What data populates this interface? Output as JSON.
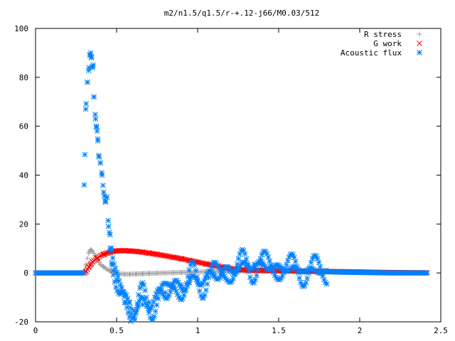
{
  "chart_data": {
    "type": "scatter",
    "title": "m2/n1.5/q1.5/r-+.12-j66/M0.03/512",
    "xlabel": "",
    "ylabel": "",
    "xlim": [
      0,
      2.5
    ],
    "ylim": [
      -20,
      100
    ],
    "xticks": [
      "0",
      "0.5",
      "1",
      "1.5",
      "2",
      "2.5"
    ],
    "yticks": [
      "-20",
      "0",
      "20",
      "40",
      "60",
      "80",
      "100"
    ],
    "grid": false,
    "legend_position": "top-right",
    "series": [
      {
        "name": "R stress",
        "marker": "plus",
        "color": "#a0a0a0",
        "x": [
          0.3,
          0.31,
          0.32,
          0.33,
          0.34,
          0.35,
          0.36,
          0.37,
          0.38,
          0.39,
          0.4,
          0.42,
          0.44,
          0.46,
          0.48,
          0.5,
          0.52,
          0.55,
          0.58,
          0.62,
          0.66,
          0.7,
          0.75,
          0.8,
          0.85,
          0.9,
          0.95,
          1.0,
          1.05,
          1.1,
          1.15,
          1.2,
          1.25,
          1.3,
          1.4,
          1.5,
          1.6,
          1.7,
          1.8,
          1.9,
          2.0
        ],
        "y": [
          0.5,
          3,
          6,
          8.5,
          9.5,
          9,
          8,
          7,
          5.5,
          4.5,
          3.5,
          2.5,
          1.5,
          0.8,
          0.3,
          0,
          -0.3,
          -0.5,
          -0.5,
          -0.4,
          -0.3,
          -0.2,
          -0.1,
          0,
          0.1,
          0.2,
          0.3,
          0.4,
          0.5,
          0.5,
          0.6,
          0.6,
          0.7,
          0.8,
          0.8,
          0.7,
          0.6,
          0.5,
          0.4,
          0.3,
          0.2
        ]
      },
      {
        "name": "G work",
        "marker": "cross",
        "color": "#ff0000",
        "x": [
          0.31,
          0.32,
          0.33,
          0.34,
          0.35,
          0.36,
          0.38,
          0.4,
          0.42,
          0.44,
          0.46,
          0.48,
          0.5,
          0.52,
          0.55,
          0.58,
          0.62,
          0.66,
          0.7,
          0.75,
          0.8,
          0.85,
          0.9,
          0.95,
          1.0,
          1.05,
          1.1,
          1.15,
          1.2,
          1.25,
          1.3,
          1.35,
          1.4,
          1.45,
          1.5,
          1.55,
          1.6,
          1.7,
          1.8,
          1.9,
          2.0
        ],
        "y": [
          0.5,
          1.5,
          2.5,
          3.5,
          4.5,
          5,
          6,
          7,
          7.6,
          8.1,
          8.5,
          8.8,
          9,
          9.1,
          9.1,
          9,
          8.8,
          8.5,
          8.1,
          7.6,
          7,
          6.4,
          5.8,
          5.1,
          4.4,
          3.7,
          3,
          2.4,
          1.8,
          1.4,
          1.2,
          1.1,
          1.0,
          0.9,
          0.9,
          0.9,
          0.8,
          0.7,
          0.6,
          0.5,
          0.4
        ]
      },
      {
        "name": "Acoustic flux",
        "marker": "star",
        "color": "#0080ff",
        "x": [
          0.3,
          0.31,
          0.32,
          0.33,
          0.335,
          0.34,
          0.345,
          0.35,
          0.355,
          0.36,
          0.37,
          0.375,
          0.38,
          0.385,
          0.39,
          0.4,
          0.41,
          0.42,
          0.43,
          0.44,
          0.45,
          0.46,
          0.47,
          0.48,
          0.5,
          0.52,
          0.55,
          0.58,
          0.6,
          0.63,
          0.66,
          0.7,
          0.75,
          0.8,
          0.85,
          0.9,
          0.95,
          1.0,
          1.05,
          1.1,
          1.15,
          1.2,
          1.25,
          1.3,
          1.35,
          1.4,
          1.45,
          1.5,
          1.6,
          1.7,
          1.8,
          1.9,
          2.0,
          2.1,
          2.2,
          2.3,
          2.4
        ],
        "y": [
          36,
          67,
          78,
          84,
          89,
          90,
          88,
          84,
          85,
          72,
          63,
          60,
          58,
          54,
          48,
          45,
          40,
          33,
          29,
          31,
          19,
          10,
          4,
          1,
          -3,
          -8,
          -12,
          -12,
          -15,
          -14,
          -13,
          -12,
          -10,
          -8,
          -6,
          -5,
          -4,
          -3,
          -2,
          -1,
          0,
          1,
          2,
          3,
          3.5,
          3,
          2.5,
          2,
          1.5,
          1,
          0.5,
          0.3,
          0.2,
          0.1,
          0,
          0,
          0
        ]
      }
    ]
  }
}
